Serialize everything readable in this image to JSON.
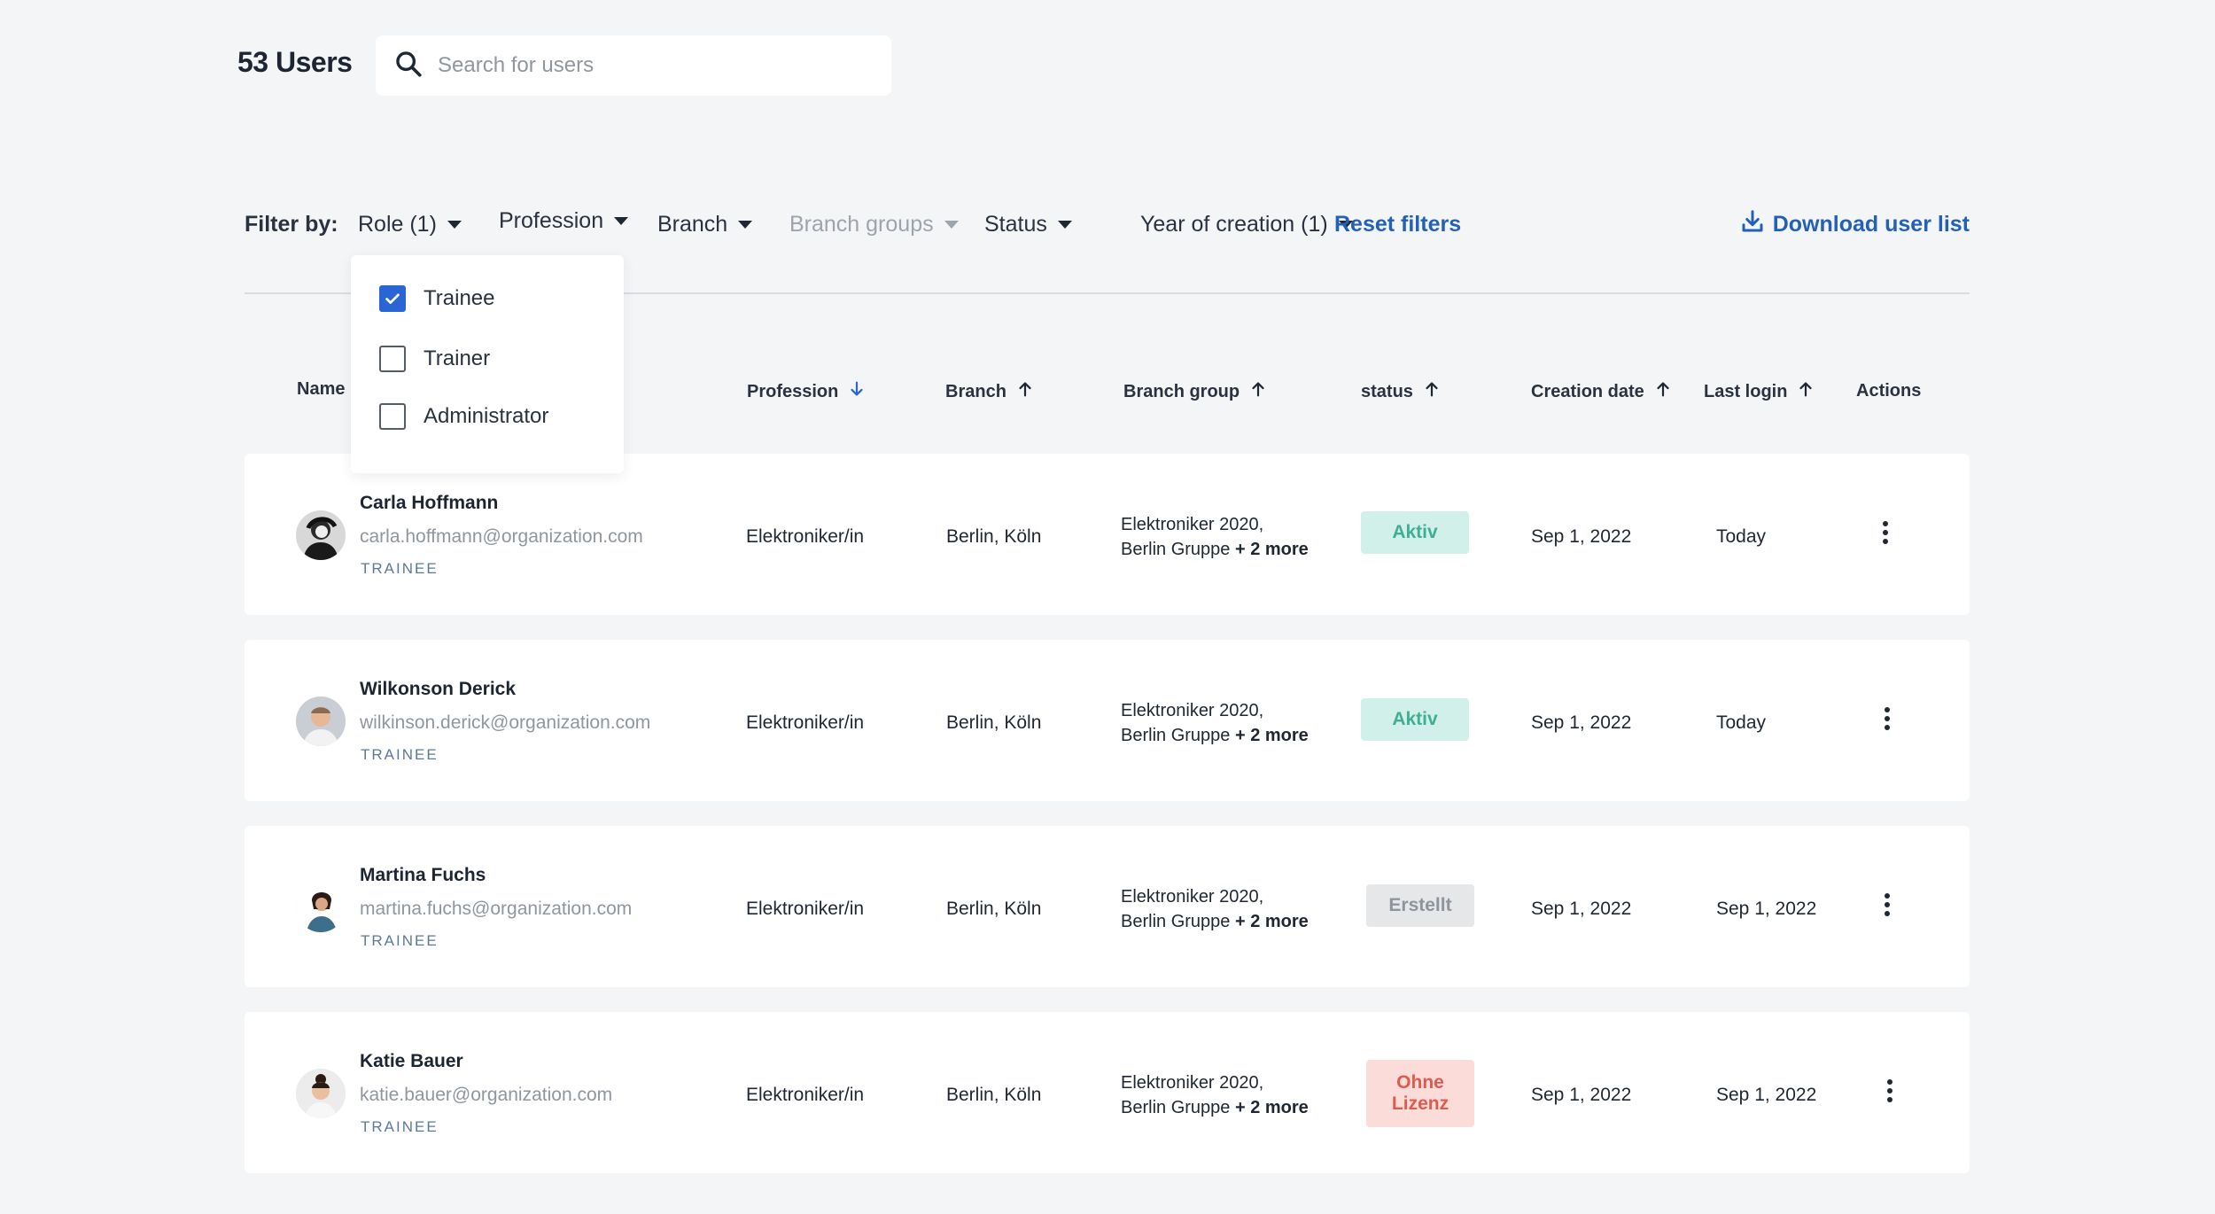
{
  "header": {
    "user_count": "53 Users",
    "search_placeholder": "Search for users"
  },
  "filters": {
    "label": "Filter by:",
    "items": [
      "Role (1)",
      "Profession",
      "Branch",
      "Branch groups",
      "Status",
      "Year of creation (1)"
    ],
    "reset": "Reset filters",
    "download": "Download user list"
  },
  "role_dropdown": {
    "options": [
      {
        "label": "Trainee",
        "checked": true
      },
      {
        "label": "Trainer",
        "checked": false
      },
      {
        "label": "Administrator",
        "checked": false
      }
    ]
  },
  "table": {
    "columns": [
      "Name",
      "Profession",
      "Branch",
      "Branch group",
      "status",
      "Creation date",
      "Last login",
      "Actions"
    ],
    "rows": [
      {
        "name": "Carla Hoffmann",
        "email": "carla.hoffmann@organization.com",
        "role": "TRAINEE",
        "profession": "Elektroniker/in",
        "branch": "Berlin, Köln",
        "branch_group_line1": "Elektroniker 2020,",
        "branch_group_line2": "Berlin Gruppe",
        "branch_group_more": "+ 2 more",
        "status": "Aktiv",
        "creation_date": "Sep 1, 2022",
        "last_login": "Today"
      },
      {
        "name": "Wilkonson Derick",
        "email": "wilkinson.derick@organization.com",
        "role": "TRAINEE",
        "profession": "Elektroniker/in",
        "branch": "Berlin, Köln",
        "branch_group_line1": "Elektroniker 2020,",
        "branch_group_line2": "Berlin Gruppe",
        "branch_group_more": "+ 2 more",
        "status": "Aktiv",
        "creation_date": "Sep 1, 2022",
        "last_login": "Today"
      },
      {
        "name": "Martina Fuchs",
        "email": "martina.fuchs@organization.com",
        "role": "TRAINEE",
        "profession": "Elektroniker/in",
        "branch": "Berlin, Köln",
        "branch_group_line1": "Elektroniker 2020,",
        "branch_group_line2": "Berlin Gruppe",
        "branch_group_more": "+ 2 more",
        "status": "Erstellt",
        "creation_date": "Sep 1, 2022",
        "last_login": "Sep 1, 2022"
      },
      {
        "name": "Katie Bauer",
        "email": "katie.bauer@organization.com",
        "role": "TRAINEE",
        "profession": "Elektroniker/in",
        "branch": "Berlin, Köln",
        "branch_group_line1": "Elektroniker 2020,",
        "branch_group_line2": "Berlin Gruppe",
        "branch_group_more": "+ 2 more",
        "status_line1": "Ohne",
        "status_line2": "Lizenz",
        "creation_date": "Sep 1, 2022",
        "last_login": "Sep 1, 2022"
      }
    ]
  },
  "colors": {
    "accent": "#2361b8",
    "checkbox": "#2b64d3",
    "status_aktiv": "#3faf94",
    "status_erstellt": "#8e949b",
    "status_lizenz": "#dd5b4f"
  }
}
